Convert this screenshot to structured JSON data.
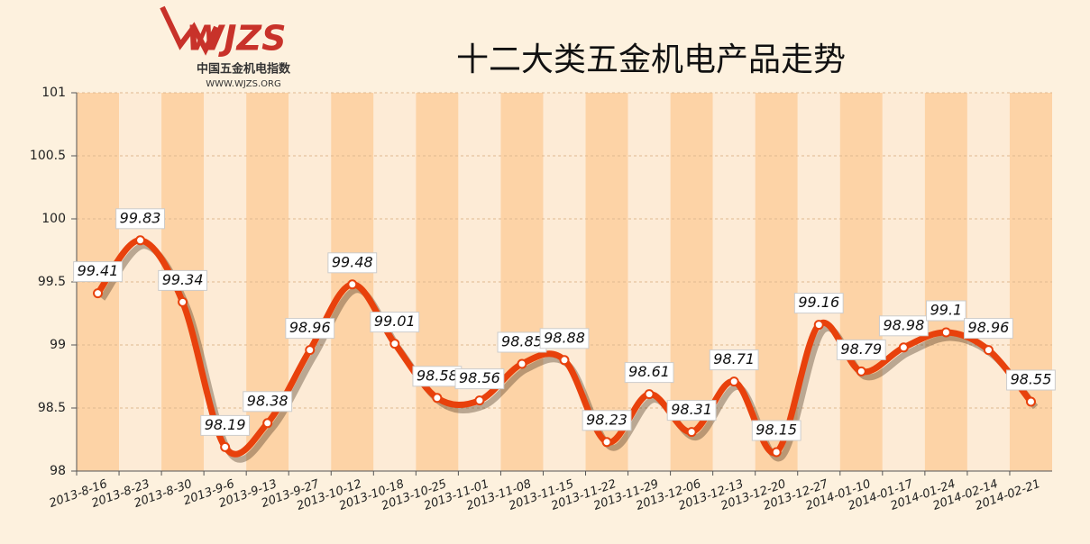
{
  "logo": {
    "mark": "WJZS",
    "name": "中国五金机电指数",
    "url": "WWW.WJZS.ORG"
  },
  "chart_data": {
    "type": "line",
    "title": "十二大类五金机电产品走势",
    "categories": [
      "2013-8-16",
      "2013-8-23",
      "2013-8-30",
      "2013-9-6",
      "2013-9-13",
      "2013-9-27",
      "2013-10-12",
      "2013-10-18",
      "2013-10-25",
      "2013-11-01",
      "2013-11-08",
      "2013-11-15",
      "2013-11-22",
      "2013-11-29",
      "2013-12-06",
      "2013-12-13",
      "2013-12-20",
      "2013-12-27",
      "2014-01-10",
      "2014-01-17",
      "2014-01-24",
      "2014-02-14",
      "2014-02-21"
    ],
    "series": [
      {
        "color": "#e8410c",
        "values": [
          99.41,
          99.83,
          99.34,
          98.19,
          98.38,
          98.96,
          99.48,
          99.01,
          98.58,
          98.56,
          98.85,
          98.88,
          98.23,
          98.61,
          98.31,
          98.71,
          98.15,
          99.16,
          98.79,
          98.98,
          99.1,
          98.96,
          98.55
        ]
      }
    ],
    "ylim": [
      98,
      101
    ],
    "yticks": [
      98,
      98.5,
      99,
      99.5,
      100,
      100.5,
      101
    ],
    "grid": true,
    "band_colors": [
      "#fdd3a6",
      "#fdebd6"
    ]
  }
}
